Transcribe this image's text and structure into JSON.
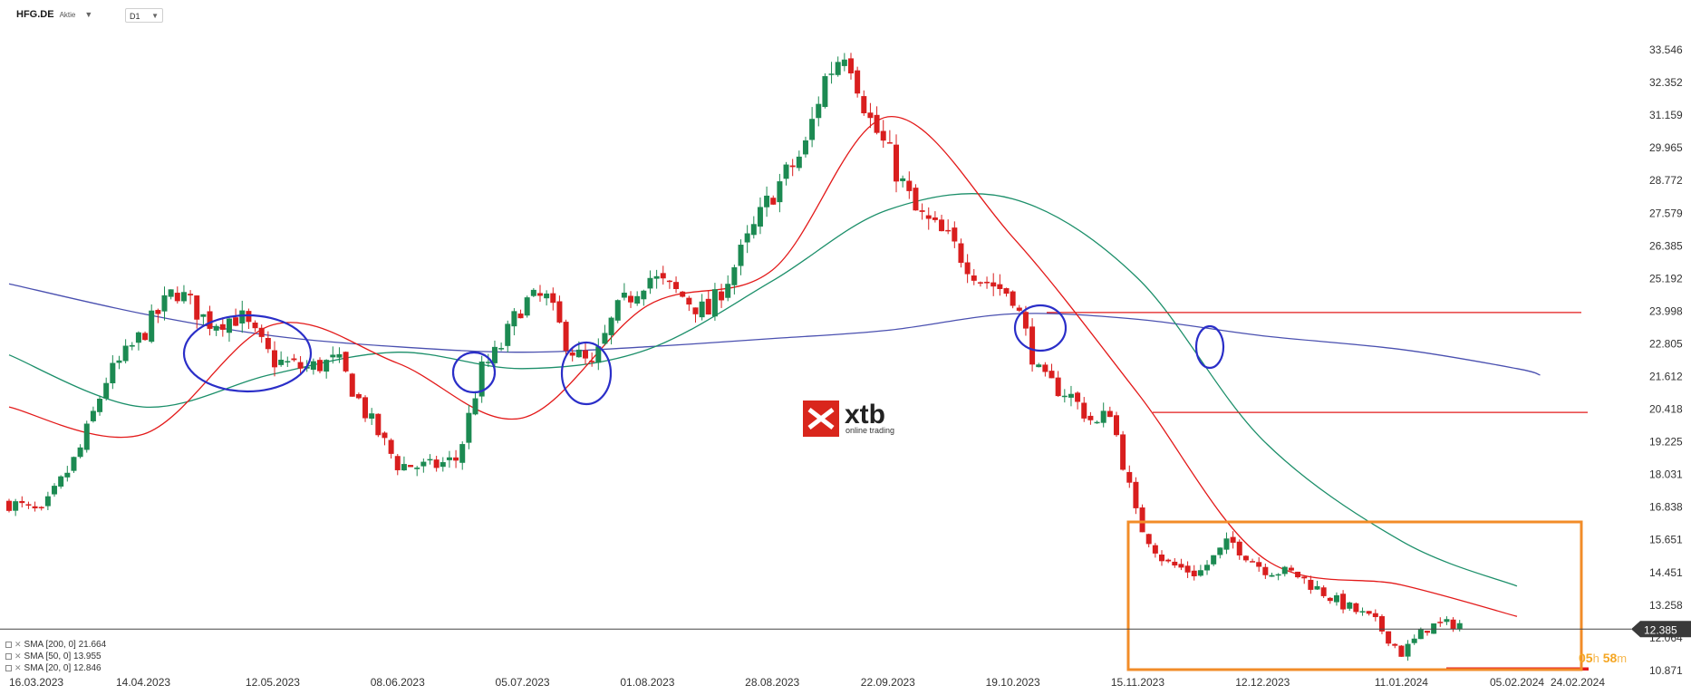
{
  "header": {
    "symbol": "HFG.DE",
    "instrument_type": "Aktie",
    "timeframe": "D1"
  },
  "logo": {
    "name": "xtb",
    "tagline": "online trading"
  },
  "legend": [
    {
      "label": "SMA [200,  0] 21.664",
      "color": "#4a50b0"
    },
    {
      "label": "SMA [50,  0] 13.955",
      "color": "#1c8f6a"
    },
    {
      "label": "SMA [20,  0] 12.846",
      "color": "#e31a1a"
    }
  ],
  "timer": {
    "hours": "05",
    "h_unit": "h",
    "minutes": "58",
    "m_unit": "m"
  },
  "colors": {
    "up": "#1c8a52",
    "down": "#d91e1e",
    "sma200": "#4a50b0",
    "sma50": "#1c8f6a",
    "sma20": "#e31a1a",
    "orange": "#f28c28",
    "circle": "#2a2ec8"
  },
  "chart_data": {
    "type": "candlestick",
    "x_tick_labels": [
      "16.03.2023",
      "14.04.2023",
      "12.05.2023",
      "08.06.2023",
      "05.07.2023",
      "01.08.2023",
      "28.08.2023",
      "22.09.2023",
      "19.10.2023",
      "15.11.2023",
      "12.12.2023",
      "11.01.2024",
      "05.02.2024",
      "24.02.2024"
    ],
    "y_tick_labels": [
      "33.546",
      "32.352",
      "31.159",
      "29.965",
      "28.772",
      "27.579",
      "26.385",
      "25.192",
      "23.998",
      "22.805",
      "21.612",
      "20.418",
      "19.225",
      "18.031",
      "16.838",
      "15.651",
      "14.451",
      "13.258",
      "12.064",
      "10.871"
    ],
    "ylim": [
      10.871,
      33.546
    ],
    "current_price": "12.385",
    "horizontal_lines": [
      23.95,
      20.3,
      10.93
    ],
    "anchors": [
      {
        "date": "16.03.2023",
        "price": 17.0
      },
      {
        "date": "23.03.2023",
        "price": 16.6
      },
      {
        "date": "31.03.2023",
        "price": 18.8
      },
      {
        "date": "06.04.2023",
        "price": 21.5
      },
      {
        "date": "14.04.2023",
        "price": 23.2
      },
      {
        "date": "21.04.2023",
        "price": 24.8
      },
      {
        "date": "28.04.2023",
        "price": 23.6
      },
      {
        "date": "05.05.2023",
        "price": 23.8
      },
      {
        "date": "12.05.2023",
        "price": 22.2
      },
      {
        "date": "19.05.2023",
        "price": 21.9
      },
      {
        "date": "26.05.2023",
        "price": 22.2
      },
      {
        "date": "01.06.2023",
        "price": 20.3
      },
      {
        "date": "08.06.2023",
        "price": 18.4
      },
      {
        "date": "15.06.2023",
        "price": 18.3
      },
      {
        "date": "21.06.2023",
        "price": 18.6
      },
      {
        "date": "26.06.2023",
        "price": 21.8
      },
      {
        "date": "30.06.2023",
        "price": 22.6
      },
      {
        "date": "05.07.2023",
        "price": 24.3
      },
      {
        "date": "10.07.2023",
        "price": 24.5
      },
      {
        "date": "15.07.2023",
        "price": 22.7
      },
      {
        "date": "20.07.2023",
        "price": 21.9
      },
      {
        "date": "25.07.2023",
        "price": 23.9
      },
      {
        "date": "01.08.2023",
        "price": 25.3
      },
      {
        "date": "08.08.2023",
        "price": 24.6
      },
      {
        "date": "14.08.2023",
        "price": 23.9
      },
      {
        "date": "20.08.2023",
        "price": 25.7
      },
      {
        "date": "28.08.2023",
        "price": 28.3
      },
      {
        "date": "04.09.2023",
        "price": 29.9
      },
      {
        "date": "08.09.2023",
        "price": 32.4
      },
      {
        "date": "13.09.2023",
        "price": 33.7
      },
      {
        "date": "18.09.2023",
        "price": 31.0
      },
      {
        "date": "22.09.2023",
        "price": 29.8
      },
      {
        "date": "28.09.2023",
        "price": 27.6
      },
      {
        "date": "05.10.2023",
        "price": 26.6
      },
      {
        "date": "12.10.2023",
        "price": 25.2
      },
      {
        "date": "19.10.2023",
        "price": 24.6
      },
      {
        "date": "25.10.2023",
        "price": 21.5
      },
      {
        "date": "31.10.2023",
        "price": 21.0
      },
      {
        "date": "06.11.2023",
        "price": 19.8
      },
      {
        "date": "09.11.2023",
        "price": 20.4
      },
      {
        "date": "15.11.2023",
        "price": 16.3
      },
      {
        "date": "21.11.2023",
        "price": 14.8
      },
      {
        "date": "28.11.2023",
        "price": 14.4
      },
      {
        "date": "05.12.2023",
        "price": 15.6
      },
      {
        "date": "12.12.2023",
        "price": 14.6
      },
      {
        "date": "19.12.2023",
        "price": 14.4
      },
      {
        "date": "28.12.2023",
        "price": 13.4
      },
      {
        "date": "05.01.2024",
        "price": 12.7
      },
      {
        "date": "11.01.2024",
        "price": 11.5
      },
      {
        "date": "17.01.2024",
        "price": 12.5
      },
      {
        "date": "24.01.2024",
        "price": 12.6
      }
    ],
    "sma200": [
      {
        "date": "16.03.2023",
        "value": 25.0
      },
      {
        "date": "14.04.2023",
        "value": 23.9
      },
      {
        "date": "12.05.2023",
        "value": 23.1
      },
      {
        "date": "08.06.2023",
        "value": 22.7
      },
      {
        "date": "05.07.2023",
        "value": 22.5
      },
      {
        "date": "01.08.2023",
        "value": 22.7
      },
      {
        "date": "28.08.2023",
        "value": 23.0
      },
      {
        "date": "22.09.2023",
        "value": 23.3
      },
      {
        "date": "19.10.2023",
        "value": 23.9
      },
      {
        "date": "15.11.2023",
        "value": 23.7
      },
      {
        "date": "12.12.2023",
        "value": 23.1
      },
      {
        "date": "11.01.2024",
        "value": 22.6
      },
      {
        "date": "05.02.2024",
        "value": 21.9
      },
      {
        "date": "10.02.2024",
        "value": 21.664
      }
    ],
    "sma50": [
      {
        "date": "16.03.2023",
        "value": 22.4
      },
      {
        "date": "14.04.2023",
        "value": 20.5
      },
      {
        "date": "12.05.2023",
        "value": 21.7
      },
      {
        "date": "08.06.2023",
        "value": 22.5
      },
      {
        "date": "05.07.2023",
        "value": 21.9
      },
      {
        "date": "01.08.2023",
        "value": 22.6
      },
      {
        "date": "28.08.2023",
        "value": 25.1
      },
      {
        "date": "22.09.2023",
        "value": 27.7
      },
      {
        "date": "19.10.2023",
        "value": 28.1
      },
      {
        "date": "15.11.2023",
        "value": 25.2
      },
      {
        "date": "12.12.2023",
        "value": 19.3
      },
      {
        "date": "11.01.2024",
        "value": 15.6
      },
      {
        "date": "05.02.2024",
        "value": 13.955
      }
    ],
    "sma20": [
      {
        "date": "16.03.2023",
        "value": 20.5
      },
      {
        "date": "14.04.2023",
        "value": 19.5
      },
      {
        "date": "12.05.2023",
        "value": 23.5
      },
      {
        "date": "08.06.2023",
        "value": 22.1
      },
      {
        "date": "05.07.2023",
        "value": 20.1
      },
      {
        "date": "01.08.2023",
        "value": 24.2
      },
      {
        "date": "28.08.2023",
        "value": 25.5
      },
      {
        "date": "22.09.2023",
        "value": 31.1
      },
      {
        "date": "19.10.2023",
        "value": 26.7
      },
      {
        "date": "15.11.2023",
        "value": 21.0
      },
      {
        "date": "12.12.2023",
        "value": 15.0
      },
      {
        "date": "11.01.2024",
        "value": 14.0
      },
      {
        "date": "05.02.2024",
        "value": 12.846
      }
    ]
  }
}
